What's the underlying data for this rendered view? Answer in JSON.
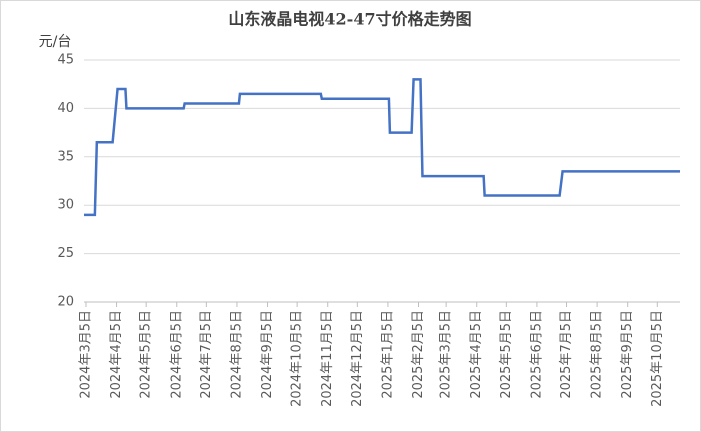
{
  "chart_data": {
    "type": "line",
    "title": "山东液晶电视42-47寸价格走势图",
    "y_label": "元/台",
    "x": [
      "2024-03-03",
      "2024-03-14",
      "2024-03-16",
      "2024-04-01",
      "2024-04-06",
      "2024-04-14",
      "2024-04-15",
      "2024-06-12",
      "2024-06-13",
      "2024-08-07",
      "2024-08-08",
      "2024-10-29",
      "2024-10-30",
      "2025-01-06",
      "2025-01-07",
      "2025-01-29",
      "2025-01-31",
      "2025-02-07",
      "2025-02-09",
      "2025-04-12",
      "2025-04-13",
      "2025-06-28",
      "2025-07-01",
      "2025-10-28"
    ],
    "series": [
      {
        "color": "#4472c4",
        "values": [
          29,
          29,
          36.5,
          36.5,
          42,
          42,
          40,
          40,
          40.5,
          40.5,
          41.5,
          41.5,
          41,
          41,
          37.5,
          37.5,
          43,
          43,
          33,
          33,
          31,
          31,
          33.5,
          33.5
        ]
      }
    ],
    "xlim": [
      "2024-03-03",
      "2025-10-28"
    ],
    "xticks": [
      {
        "value": "2024-03-05",
        "label": "2024年3月5日"
      },
      {
        "value": "2024-04-05",
        "label": "2024年4月5日"
      },
      {
        "value": "2024-05-05",
        "label": "2024年5月5日"
      },
      {
        "value": "2024-06-05",
        "label": "2024年6月5日"
      },
      {
        "value": "2024-07-05",
        "label": "2024年7月5日"
      },
      {
        "value": "2024-08-05",
        "label": "2024年8月5日"
      },
      {
        "value": "2024-09-05",
        "label": "2024年9月5日"
      },
      {
        "value": "2024-10-05",
        "label": "2024年10月5日"
      },
      {
        "value": "2024-11-05",
        "label": "2024年11月5日"
      },
      {
        "value": "2024-12-05",
        "label": "2024年12月5日"
      },
      {
        "value": "2025-01-05",
        "label": "2025年1月5日"
      },
      {
        "value": "2025-02-05",
        "label": "2025年2月5日"
      },
      {
        "value": "2025-03-05",
        "label": "2025年3月5日"
      },
      {
        "value": "2025-04-05",
        "label": "2025年4月5日"
      },
      {
        "value": "2025-05-05",
        "label": "2025年5月5日"
      },
      {
        "value": "2025-06-05",
        "label": "2025年6月5日"
      },
      {
        "value": "2025-07-05",
        "label": "2025年7月5日"
      },
      {
        "value": "2025-08-05",
        "label": "2025年8月5日"
      },
      {
        "value": "2025-09-05",
        "label": "2025年9月5日"
      },
      {
        "value": "2025-10-05",
        "label": "2025年10月5日"
      }
    ],
    "ylim": [
      20,
      45
    ],
    "yticks": [
      20,
      25,
      30,
      35,
      40,
      45
    ],
    "grid": true
  }
}
